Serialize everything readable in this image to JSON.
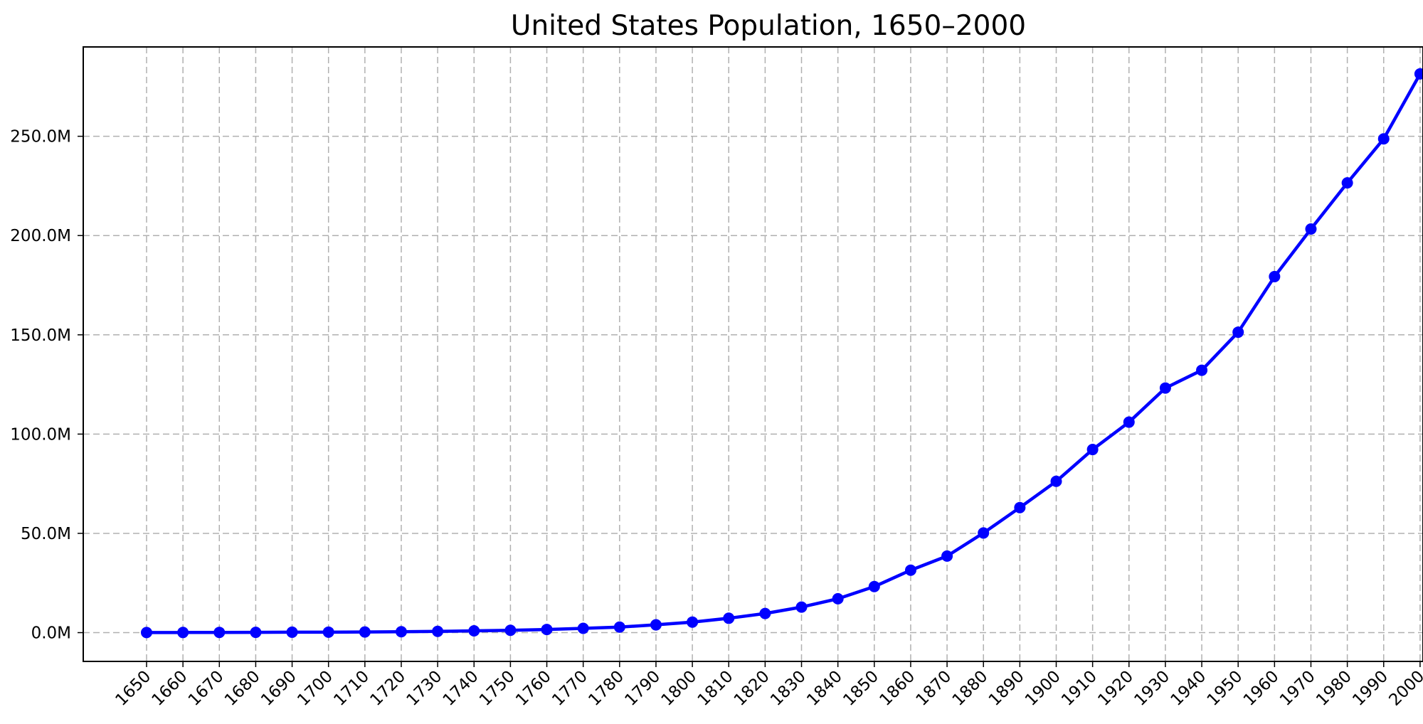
{
  "chart_data": {
    "type": "line",
    "title": "United States Population, 1650–2000",
    "xlabel": "",
    "ylabel": "",
    "grid": true,
    "ylim": [
      -14500000,
      295000000
    ],
    "color": "#0000ff",
    "x": [
      1650,
      1660,
      1670,
      1680,
      1690,
      1700,
      1710,
      1720,
      1730,
      1740,
      1750,
      1760,
      1770,
      1780,
      1790,
      1800,
      1810,
      1820,
      1830,
      1840,
      1850,
      1860,
      1870,
      1880,
      1890,
      1900,
      1910,
      1920,
      1930,
      1940,
      1950,
      1960,
      1970,
      1980,
      1990,
      2000
    ],
    "values": [
      50368,
      75058,
      111935,
      151507,
      210372,
      250888,
      331711,
      466185,
      629445,
      905563,
      1170760,
      1593625,
      2148076,
      2780369,
      3929214,
      5308483,
      7239881,
      9638453,
      12866020,
      17069453,
      23191876,
      31443321,
      38558371,
      50189209,
      62979766,
      76212168,
      92228496,
      106021537,
      123202624,
      132164569,
      151325798,
      179323175,
      203302031,
      226542199,
      248709873,
      281421906
    ],
    "yticks": [
      0,
      50000000,
      100000000,
      150000000,
      200000000,
      250000000
    ],
    "ytick_labels": [
      "0.0M",
      "50.0M",
      "100.0M",
      "150.0M",
      "200.0M",
      "250.0M"
    ],
    "xtick_labels": [
      "1650",
      "1660",
      "1670",
      "1680",
      "1690",
      "1700",
      "1710",
      "1720",
      "1730",
      "1740",
      "1750",
      "1760",
      "1770",
      "1780",
      "1790",
      "1800",
      "1810",
      "1820",
      "1830",
      "1840",
      "1850",
      "1860",
      "1870",
      "1880",
      "1890",
      "1900",
      "1910",
      "1920",
      "1930",
      "1940",
      "1950",
      "1960",
      "1970",
      "1980",
      "1990",
      "2000"
    ]
  }
}
